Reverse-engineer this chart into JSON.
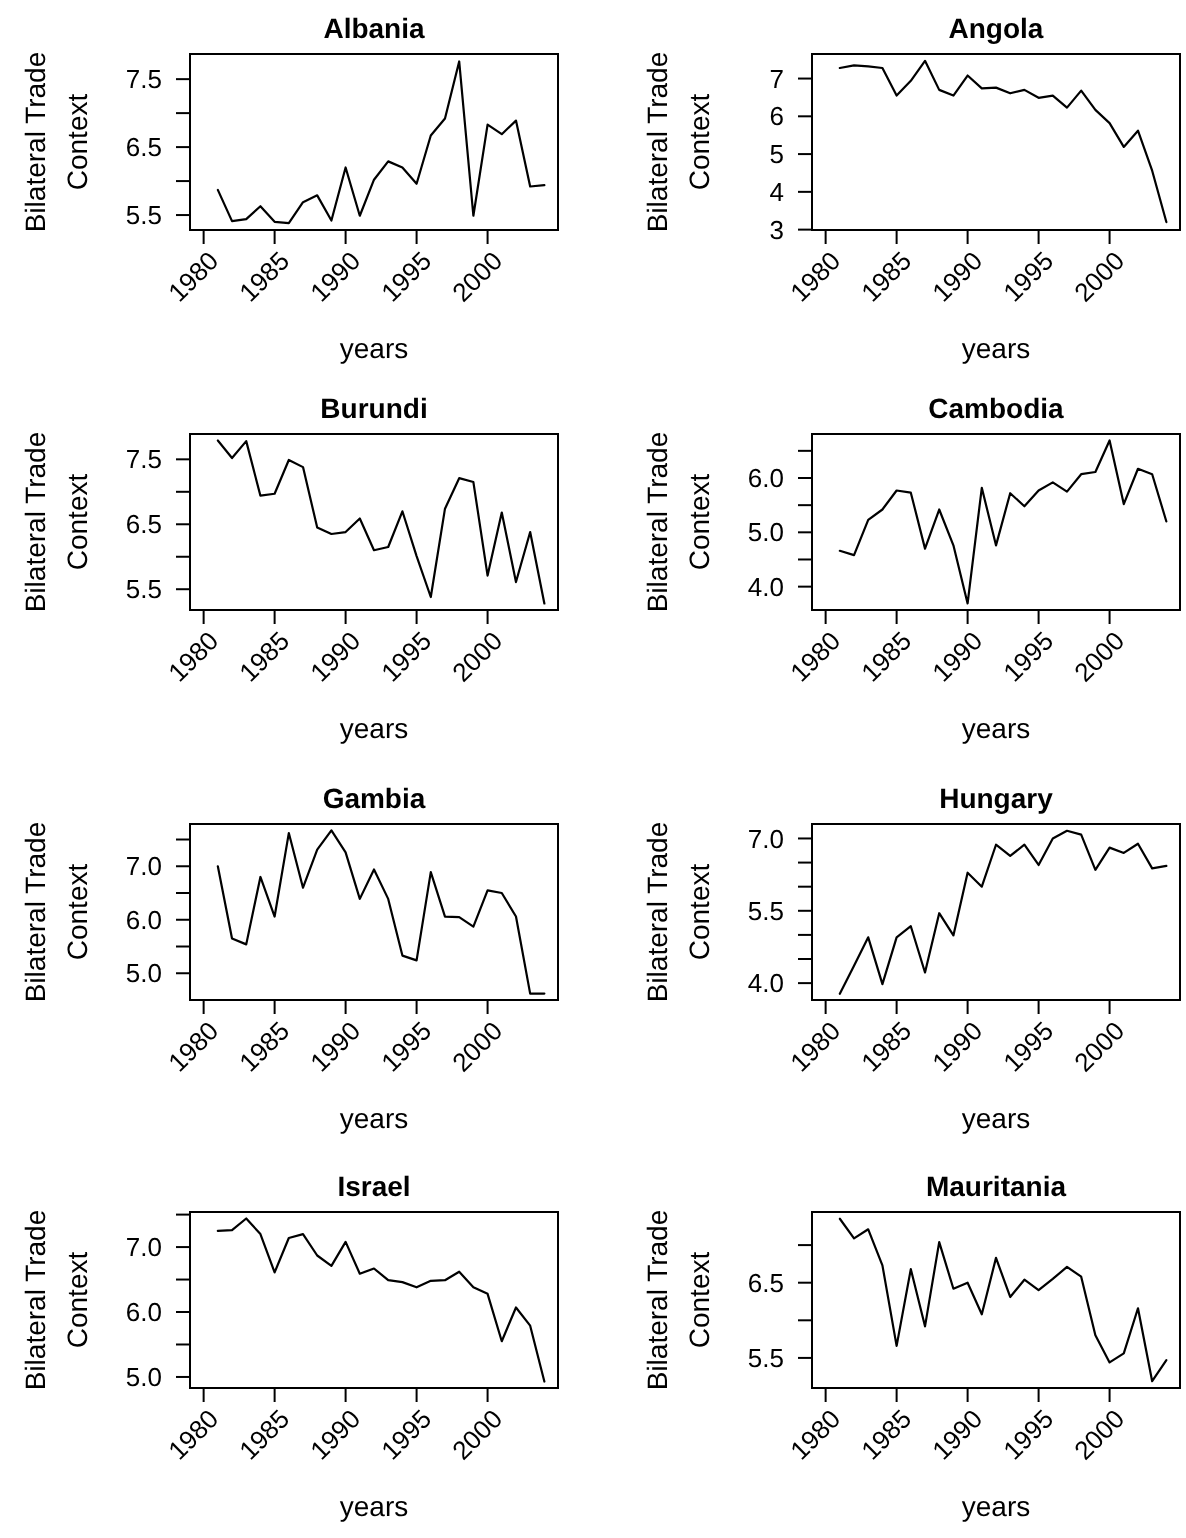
{
  "chart_data": [
    {
      "type": "line",
      "title": "Albania",
      "xlabel": "years",
      "ylabel": "Bilateral Trade\nContext",
      "color": "#000000",
      "x": [
        1981,
        1982,
        1983,
        1984,
        1985,
        1986,
        1987,
        1988,
        1989,
        1990,
        1991,
        1992,
        1993,
        1994,
        1995,
        1996,
        1997,
        1998,
        1999,
        2000,
        2001,
        2002,
        2003,
        2004
      ],
      "values": [
        5.87,
        5.41,
        5.44,
        5.63,
        5.4,
        5.38,
        5.69,
        5.79,
        5.42,
        6.2,
        5.49,
        6.02,
        6.29,
        6.2,
        5.96,
        6.67,
        6.92,
        7.76,
        5.49,
        6.83,
        6.69,
        6.89,
        5.92,
        5.94
      ],
      "xlim": [
        1979.04,
        2004.96
      ],
      "xticks": [
        1980,
        1985,
        1990,
        1995,
        2000
      ],
      "ylim": [
        5.28,
        7.87
      ],
      "yticks": [
        5.5,
        {
          "value": 6,
          "label": null
        },
        6.5,
        {
          "value": 7,
          "label": null
        },
        7.5
      ]
    },
    {
      "type": "line",
      "title": "Angola",
      "xlabel": "years",
      "ylabel": "Bilateral Trade\nContext",
      "color": "#000000",
      "x": [
        1981,
        1982,
        1983,
        1984,
        1985,
        1986,
        1987,
        1988,
        1989,
        1990,
        1991,
        1992,
        1993,
        1994,
        1995,
        1996,
        1997,
        1998,
        1999,
        2000,
        2001,
        2002,
        2003,
        2004
      ],
      "values": [
        7.28,
        7.35,
        7.32,
        7.28,
        6.55,
        6.94,
        7.47,
        6.7,
        6.55,
        7.08,
        6.74,
        6.76,
        6.61,
        6.7,
        6.49,
        6.55,
        6.23,
        6.68,
        6.17,
        5.82,
        5.19,
        5.62,
        4.56,
        3.2
      ],
      "xlim": [
        1979.04,
        2004.96
      ],
      "xticks": [
        1980,
        1985,
        1990,
        1995,
        2000
      ],
      "ylim": [
        2.99,
        7.65
      ],
      "yticks": [
        3,
        4,
        5,
        6,
        7
      ]
    },
    {
      "type": "line",
      "title": "Burundi",
      "xlabel": "years",
      "ylabel": "Bilateral Trade\nContext",
      "color": "#000000",
      "x": [
        1981,
        1982,
        1983,
        1984,
        1985,
        1986,
        1987,
        1988,
        1989,
        1990,
        1991,
        1992,
        1993,
        1994,
        1995,
        1996,
        1997,
        1998,
        1999,
        2000,
        2001,
        2002,
        2003,
        2004
      ],
      "values": [
        7.79,
        7.52,
        7.78,
        6.94,
        6.97,
        7.49,
        7.38,
        6.45,
        6.35,
        6.38,
        6.59,
        6.1,
        6.15,
        6.7,
        6.01,
        5.38,
        6.74,
        7.21,
        7.15,
        5.71,
        6.68,
        5.61,
        6.38,
        5.28
      ],
      "xlim": [
        1979.04,
        2004.96
      ],
      "xticks": [
        1980,
        1985,
        1990,
        1995,
        2000
      ],
      "ylim": [
        5.18,
        7.89
      ],
      "yticks": [
        5.5,
        {
          "value": 6,
          "label": null
        },
        6.5,
        {
          "value": 7,
          "label": null
        },
        7.5
      ]
    },
    {
      "type": "line",
      "title": "Cambodia",
      "xlabel": "years",
      "ylabel": "Bilateral Trade\nContext",
      "color": "#000000",
      "x": [
        1981,
        1982,
        1983,
        1984,
        1985,
        1986,
        1987,
        1988,
        1989,
        1990,
        1991,
        1992,
        1993,
        1994,
        1995,
        1996,
        1997,
        1998,
        1999,
        2000,
        2001,
        2002,
        2003,
        2004
      ],
      "values": [
        4.66,
        4.58,
        5.23,
        5.42,
        5.77,
        5.73,
        4.7,
        5.42,
        4.76,
        3.69,
        5.82,
        4.76,
        5.72,
        5.48,
        5.77,
        5.92,
        5.75,
        6.07,
        6.11,
        6.69,
        5.52,
        6.17,
        6.07,
        5.2
      ],
      "xlim": [
        1979.04,
        2004.96
      ],
      "xticks": [
        1980,
        1985,
        1990,
        1995,
        2000
      ],
      "ylim": [
        3.57,
        6.81
      ],
      "yticks": [
        {
          "value": 4,
          "label": "4.0"
        },
        {
          "value": 4.5,
          "label": null
        },
        {
          "value": 5,
          "label": "5.0"
        },
        {
          "value": 5.5,
          "label": null
        },
        {
          "value": 6,
          "label": "6.0"
        },
        {
          "value": 6.5,
          "label": null
        }
      ]
    },
    {
      "type": "line",
      "title": "Gambia",
      "xlabel": "years",
      "ylabel": "Bilateral Trade\nContext",
      "color": "#000000",
      "x": [
        1981,
        1982,
        1983,
        1984,
        1985,
        1986,
        1987,
        1988,
        1989,
        1990,
        1991,
        1992,
        1993,
        1994,
        1995,
        1996,
        1997,
        1998,
        1999,
        2000,
        2001,
        2002,
        2003,
        2004
      ],
      "values": [
        7.0,
        5.65,
        5.54,
        6.8,
        6.06,
        7.62,
        6.6,
        7.31,
        7.67,
        7.26,
        6.39,
        6.94,
        6.39,
        5.33,
        5.24,
        6.89,
        6.06,
        6.05,
        5.87,
        6.55,
        6.5,
        6.06,
        4.62,
        4.62
      ],
      "xlim": [
        1979.04,
        2004.96
      ],
      "xticks": [
        1980,
        1985,
        1990,
        1995,
        2000
      ],
      "ylim": [
        4.5,
        7.79
      ],
      "yticks": [
        {
          "value": 5,
          "label": "5.0"
        },
        {
          "value": 5.5,
          "label": null
        },
        {
          "value": 6,
          "label": "6.0"
        },
        {
          "value": 6.5,
          "label": null
        },
        {
          "value": 7,
          "label": "7.0"
        },
        {
          "value": 7.5,
          "label": null
        }
      ]
    },
    {
      "type": "line",
      "title": "Hungary",
      "xlabel": "years",
      "ylabel": "Bilateral Trade\nContext",
      "color": "#000000",
      "x": [
        1981,
        1982,
        1983,
        1984,
        1985,
        1986,
        1987,
        1988,
        1989,
        1990,
        1991,
        1992,
        1993,
        1994,
        1995,
        1996,
        1997,
        1998,
        1999,
        2000,
        2001,
        2002,
        2003,
        2004
      ],
      "values": [
        3.78,
        4.36,
        4.95,
        3.98,
        4.95,
        5.18,
        4.22,
        5.45,
        4.99,
        6.29,
        6.0,
        6.87,
        6.64,
        6.87,
        6.45,
        7.0,
        7.16,
        7.08,
        6.35,
        6.81,
        6.7,
        6.89,
        6.38,
        6.43
      ],
      "xlim": [
        1979.04,
        2004.96
      ],
      "xticks": [
        1980,
        1985,
        1990,
        1995,
        2000
      ],
      "ylim": [
        3.65,
        7.3
      ],
      "yticks": [
        {
          "value": 4,
          "label": "4.0"
        },
        {
          "value": 4.5,
          "label": null
        },
        {
          "value": 5,
          "label": null
        },
        5.5,
        {
          "value": 6,
          "label": null
        },
        {
          "value": 6.5,
          "label": null
        },
        {
          "value": 7,
          "label": "7.0"
        }
      ]
    },
    {
      "type": "line",
      "title": "Israel",
      "xlabel": "years",
      "ylabel": "Bilateral Trade\nContext",
      "color": "#000000",
      "x": [
        1981,
        1982,
        1983,
        1984,
        1985,
        1986,
        1987,
        1988,
        1989,
        1990,
        1991,
        1992,
        1993,
        1994,
        1995,
        1996,
        1997,
        1998,
        1999,
        2000,
        2001,
        2002,
        2003,
        2004
      ],
      "values": [
        7.25,
        7.26,
        7.44,
        7.2,
        6.61,
        7.14,
        7.2,
        6.87,
        6.71,
        7.08,
        6.59,
        6.67,
        6.49,
        6.46,
        6.38,
        6.48,
        6.49,
        6.62,
        6.38,
        6.28,
        5.55,
        6.07,
        5.79,
        4.93
      ],
      "xlim": [
        1979.04,
        2004.96
      ],
      "xticks": [
        1980,
        1985,
        1990,
        1995,
        2000
      ],
      "ylim": [
        4.83,
        7.54
      ],
      "yticks": [
        {
          "value": 5,
          "label": "5.0"
        },
        {
          "value": 5.5,
          "label": null
        },
        {
          "value": 6,
          "label": "6.0"
        },
        {
          "value": 6.5,
          "label": null
        },
        {
          "value": 7,
          "label": "7.0"
        },
        {
          "value": 7.5,
          "label": null
        }
      ]
    },
    {
      "type": "line",
      "title": "Mauritania",
      "xlabel": "years",
      "ylabel": "Bilateral Trade\nContext",
      "color": "#000000",
      "x": [
        1981,
        1982,
        1983,
        1984,
        1985,
        1986,
        1987,
        1988,
        1989,
        1990,
        1991,
        1992,
        1993,
        1994,
        1995,
        1996,
        1997,
        1998,
        1999,
        2000,
        2001,
        2002,
        2003,
        2004
      ],
      "values": [
        7.35,
        7.09,
        7.21,
        6.73,
        5.66,
        6.68,
        5.92,
        7.04,
        6.42,
        6.5,
        6.08,
        6.83,
        6.31,
        6.54,
        6.4,
        6.55,
        6.71,
        6.58,
        5.8,
        5.44,
        5.56,
        6.16,
        5.19,
        5.47
      ],
      "xlim": [
        1979.04,
        2004.96
      ],
      "xticks": [
        1980,
        1985,
        1990,
        1995,
        2000
      ],
      "ylim": [
        5.1,
        7.44
      ],
      "yticks": [
        5.5,
        {
          "value": 6,
          "label": null
        },
        6.5,
        {
          "value": 7,
          "label": null
        }
      ]
    }
  ]
}
